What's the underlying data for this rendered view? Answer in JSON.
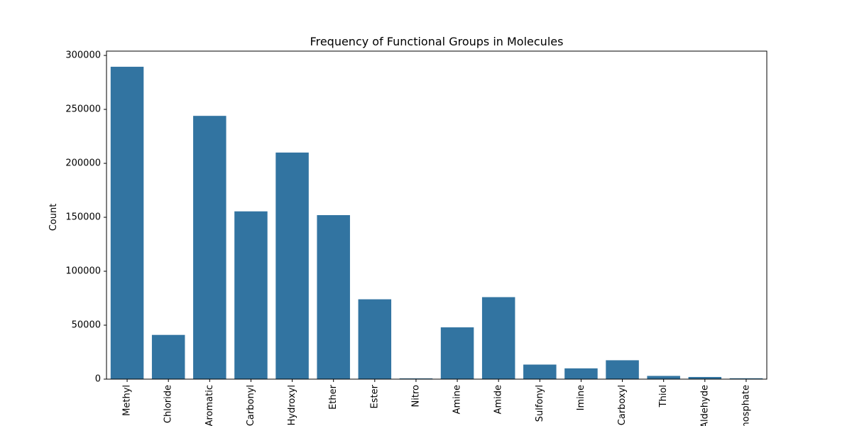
{
  "chart_data": {
    "type": "bar",
    "title": "Frequency of Functional Groups in Molecules",
    "xlabel": "",
    "ylabel": "Count",
    "categories": [
      "Methyl",
      "Chloride",
      "Aromatic",
      "Carbonyl",
      "Hydroxyl",
      "Ether",
      "Ester",
      "Nitro",
      "Amine",
      "Amide",
      "Sulfonyl",
      "Imine",
      "Carboxyl",
      "Thiol",
      "Aldehyde",
      "Phosphate"
    ],
    "values": [
      289500,
      41000,
      244000,
      155500,
      210000,
      152000,
      74000,
      700,
      48000,
      76000,
      13500,
      10000,
      17500,
      3000,
      2000,
      800
    ],
    "ylim": [
      0,
      304000
    ],
    "yticks": [
      0,
      50000,
      100000,
      150000,
      200000,
      250000,
      300000
    ],
    "bar_color": "#3274a1",
    "grid": false,
    "legend": "none"
  }
}
